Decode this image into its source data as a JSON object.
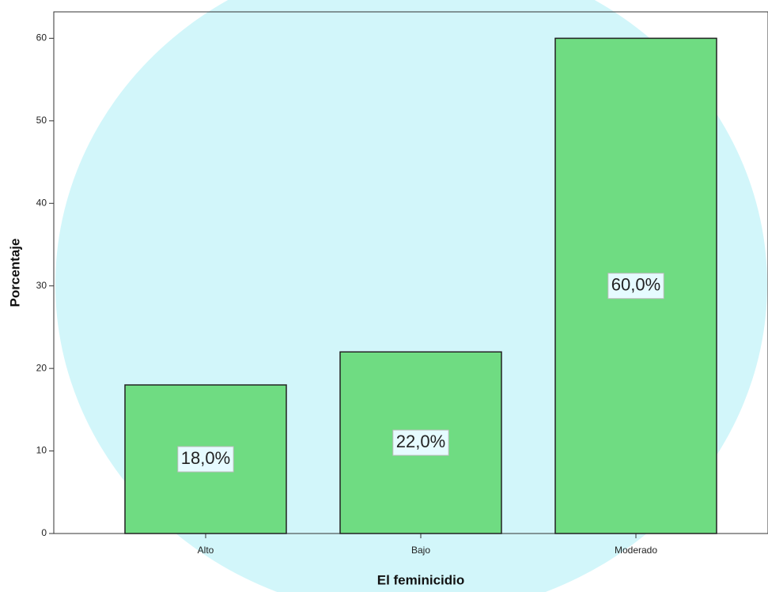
{
  "chart_data": {
    "type": "bar",
    "x_label": "El feminicidio",
    "y_label": "Porcentaje",
    "categories": [
      "Alto",
      "Bajo",
      "Moderado"
    ],
    "values": [
      18,
      22,
      60
    ],
    "value_labels": [
      "18,0%",
      "22,0%",
      "60,0%"
    ],
    "color": "#6fdc82",
    "ylim": [
      0,
      63.2
    ],
    "yticks": [
      0,
      10,
      20,
      30,
      40,
      50,
      60
    ],
    "grid": false
  }
}
